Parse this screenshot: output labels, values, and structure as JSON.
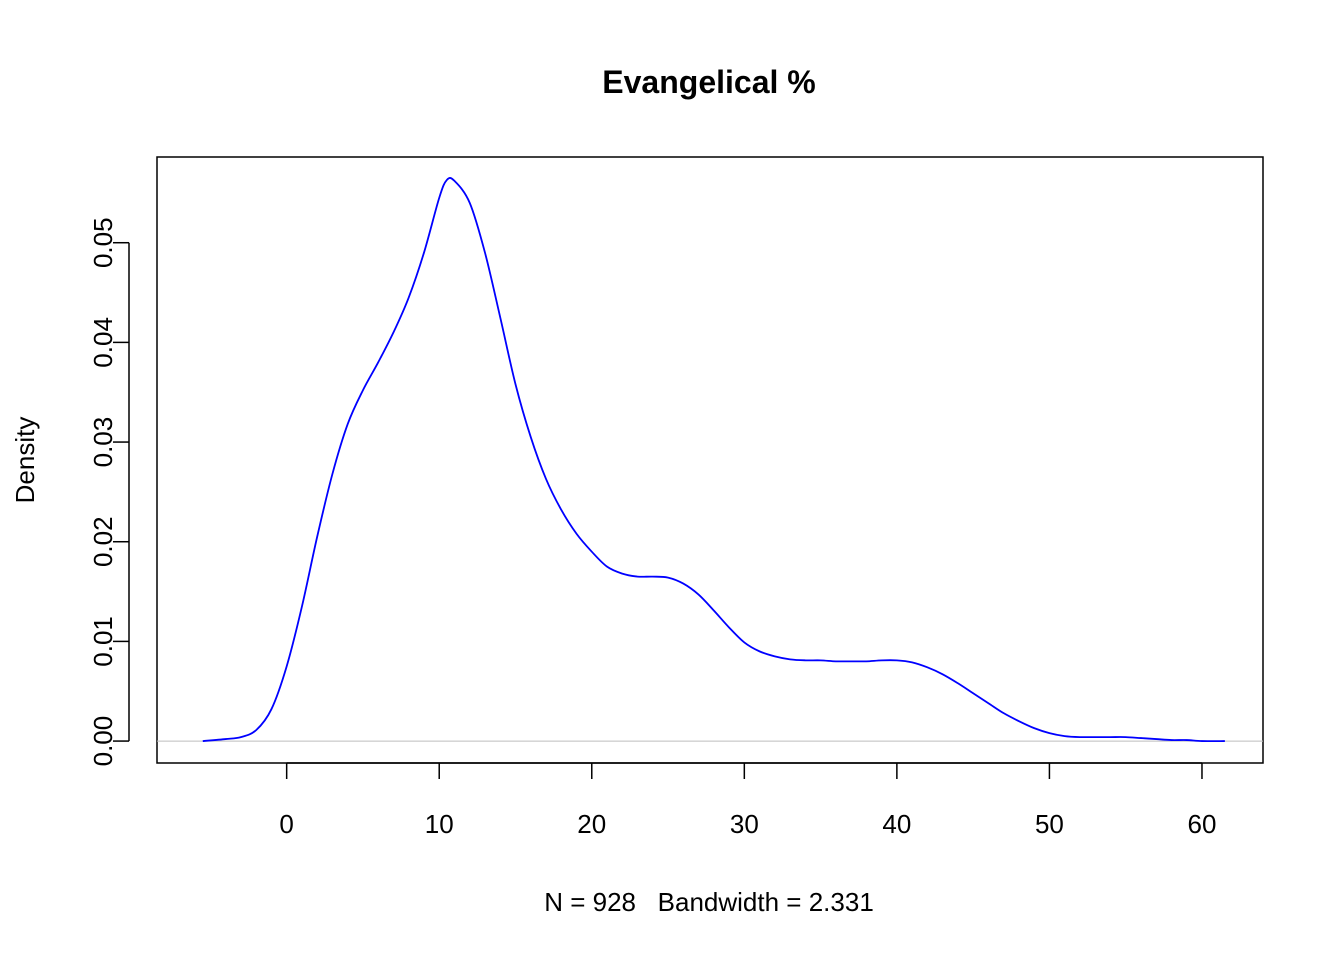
{
  "chart_data": {
    "type": "line",
    "title": "Evangelical %",
    "xlabel": "N = 928   Bandwidth = 2.331",
    "ylabel": "Density",
    "xlim": [
      -8.5,
      64
    ],
    "ylim": [
      -0.0022,
      0.0586
    ],
    "x_ticks": [
      0,
      10,
      20,
      30,
      40,
      50,
      60
    ],
    "x_tick_labels": [
      "0",
      "10",
      "20",
      "30",
      "40",
      "50",
      "60"
    ],
    "y_ticks": [
      0.0,
      0.01,
      0.02,
      0.03,
      0.04,
      0.05
    ],
    "y_tick_labels": [
      "0.00",
      "0.01",
      "0.02",
      "0.03",
      "0.04",
      "0.05"
    ],
    "grid": false,
    "baseline": 0,
    "line_color": "#0000ff",
    "baseline_color": "#bebebe",
    "series": [
      {
        "x": [
          -5.5,
          -4,
          -3,
          -2,
          -1,
          0,
          1,
          2,
          3,
          4,
          5,
          6,
          7,
          8,
          9,
          10,
          10.5,
          11,
          12,
          13,
          14,
          15,
          16,
          17,
          18,
          19,
          20,
          21,
          22,
          23,
          24,
          25,
          26,
          27,
          28,
          29,
          30,
          31,
          32,
          33,
          34,
          35,
          36,
          37,
          38,
          39,
          40,
          41,
          42,
          43,
          44,
          45,
          46,
          47,
          48,
          49,
          50,
          51,
          52,
          53,
          54,
          55,
          56,
          57,
          58,
          59,
          60,
          61.5
        ],
        "y": [
          0.0,
          0.0002,
          0.0004,
          0.0011,
          0.0032,
          0.0075,
          0.0135,
          0.0205,
          0.0268,
          0.0318,
          0.0352,
          0.038,
          0.041,
          0.0445,
          0.049,
          0.0545,
          0.0563,
          0.0562,
          0.054,
          0.049,
          0.0425,
          0.0358,
          0.0305,
          0.0263,
          0.0232,
          0.0208,
          0.019,
          0.0175,
          0.0168,
          0.0165,
          0.0165,
          0.0164,
          0.0158,
          0.0147,
          0.0131,
          0.0114,
          0.0099,
          0.009,
          0.0085,
          0.0082,
          0.0081,
          0.0081,
          0.008,
          0.008,
          0.008,
          0.0081,
          0.0081,
          0.0079,
          0.0074,
          0.0067,
          0.0058,
          0.0048,
          0.0038,
          0.0028,
          0.002,
          0.0013,
          0.0008,
          0.0005,
          0.0004,
          0.0004,
          0.0004,
          0.0004,
          0.0003,
          0.0002,
          0.0001,
          0.0001,
          0.0,
          0.0
        ]
      }
    ]
  }
}
